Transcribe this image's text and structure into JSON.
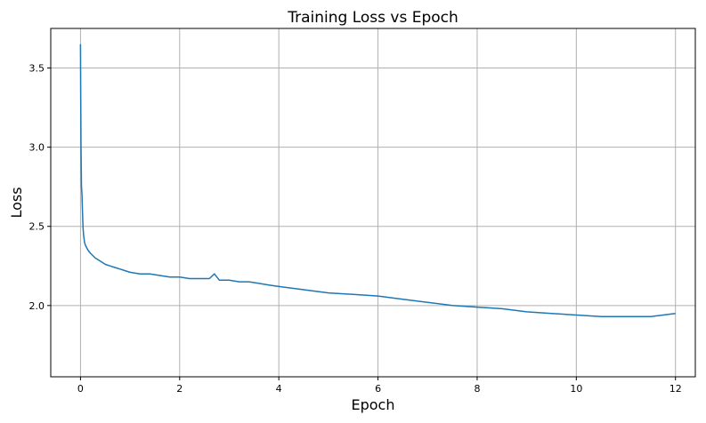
{
  "chart_data": {
    "type": "line",
    "title": "Training Loss vs Epoch",
    "xlabel": "Epoch",
    "ylabel": "Loss",
    "xlim": [
      -0.6,
      12.4
    ],
    "ylim": [
      1.55,
      3.75
    ],
    "xticks": [
      0,
      2,
      4,
      6,
      8,
      10,
      12
    ],
    "yticks": [
      2.0,
      2.5,
      3.0,
      3.5
    ],
    "xtick_labels": [
      "0",
      "2",
      "4",
      "6",
      "8",
      "10",
      "12"
    ],
    "ytick_labels": [
      "2.0",
      "2.5",
      "3.0",
      "3.5"
    ],
    "grid": true,
    "line_color": "#1f77b4",
    "series": [
      {
        "x": [
          0,
          0.005,
          0.01,
          0.015,
          0.02,
          0.03,
          0.04,
          0.05,
          0.06,
          0.08,
          0.1,
          0.15,
          0.2,
          0.3,
          0.4,
          0.5,
          0.6,
          0.7,
          0.8,
          0.9,
          1.0,
          1.2,
          1.4,
          1.6,
          1.8,
          2.0,
          2.2,
          2.4,
          2.6,
          2.7,
          2.8,
          3.0,
          3.2,
          3.4,
          3.6,
          3.8,
          4.0,
          4.5,
          5.0,
          5.5,
          6.0,
          6.5,
          7.0,
          7.5,
          8.0,
          8.5,
          9.0,
          9.5,
          10.0,
          10.5,
          11.0,
          11.5,
          12.0
        ],
        "values": [
          3.65,
          3.3,
          3.0,
          2.85,
          2.75,
          2.7,
          2.6,
          2.5,
          2.45,
          2.4,
          2.38,
          2.35,
          2.33,
          2.3,
          2.28,
          2.26,
          2.25,
          2.24,
          2.23,
          2.22,
          2.21,
          2.2,
          2.2,
          2.19,
          2.18,
          2.18,
          2.17,
          2.17,
          2.17,
          2.2,
          2.16,
          2.16,
          2.15,
          2.15,
          2.14,
          2.13,
          2.12,
          2.1,
          2.08,
          2.07,
          2.06,
          2.04,
          2.02,
          2.0,
          1.99,
          1.98,
          1.96,
          1.95,
          1.94,
          1.93,
          1.93,
          1.93,
          1.95
        ]
      }
    ]
  }
}
